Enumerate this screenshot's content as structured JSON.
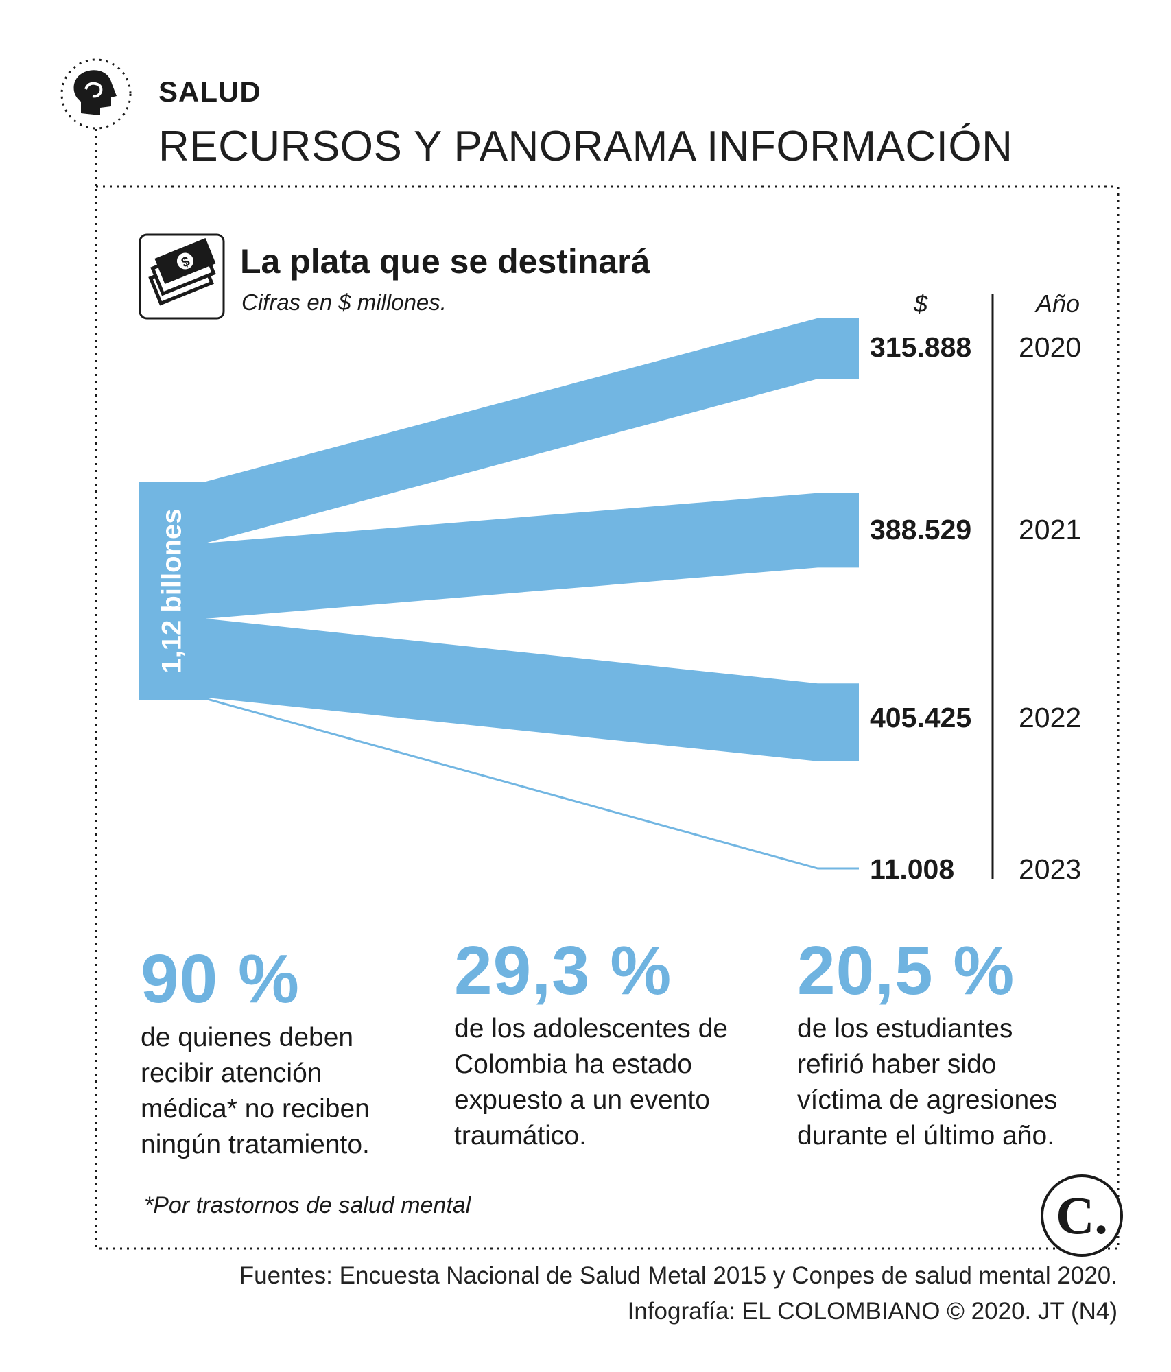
{
  "header": {
    "section": "SALUD",
    "title": "RECURSOS Y PANORAMA INFORMACIÓN"
  },
  "chart": {
    "title": "La plata que se destinará",
    "subtitle": "Cifras en $ millones.",
    "col_value": "$",
    "col_year": "Año",
    "total_label": "1,12 billones"
  },
  "chart_data": {
    "type": "flow",
    "title": "La plata que se destinará",
    "subtitle": "Cifras en $ millones.",
    "total": "1,12 billones",
    "categories": [
      "2020",
      "2021",
      "2022",
      "2023"
    ],
    "values": [
      315888,
      388529,
      405425,
      11008
    ],
    "value_labels": [
      "315.888",
      "388.529",
      "405.425",
      "11.008"
    ],
    "color": "#72b6e2"
  },
  "stats": [
    {
      "value": "90 %",
      "text": [
        "de quienes deben",
        "recibir atención",
        "médica* no reciben",
        "ningún tratamiento."
      ]
    },
    {
      "value": "29,3 %",
      "text": [
        "de los adolescentes de",
        "Colombia ha estado",
        "expuesto a un evento",
        "traumático."
      ]
    },
    {
      "value": "20,5 %",
      "text": [
        "de los estudiantes",
        "refirió haber sido",
        "víctima de agresiones",
        "durante el último año."
      ]
    }
  ],
  "note": "*Por trastornos de salud mental",
  "footer": {
    "sources": "Fuentes: Encuesta Nacional de Salud Metal 2015 y Conpes de salud mental 2020.",
    "credit": "Infografía: EL COLOMBIANO © 2020. JT (N4)"
  },
  "logo": {
    "letter": "C.",
    "icon": "el-colombiano-logo"
  },
  "icons": {
    "section": "head-brain-icon",
    "chart": "money-bills-icon"
  }
}
